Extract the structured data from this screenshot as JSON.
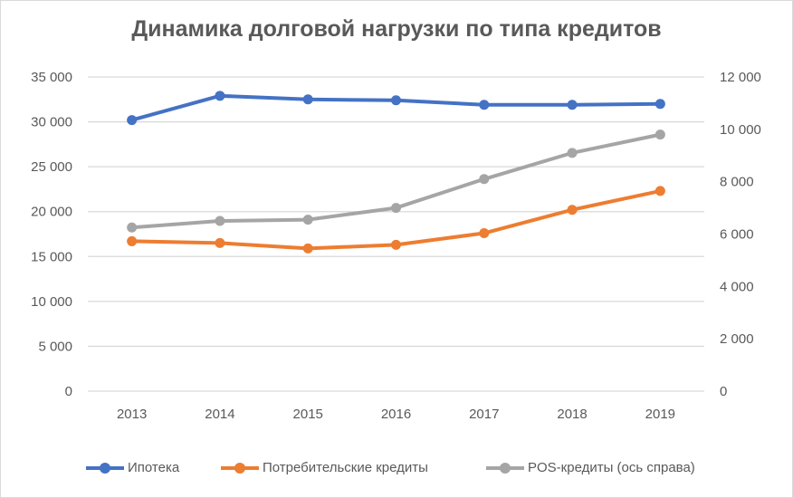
{
  "chart_data": {
    "type": "line",
    "title": "Динамика долговой нагрузки по типа кредитов",
    "categories": [
      "2013",
      "2014",
      "2015",
      "2016",
      "2017",
      "2018",
      "2019"
    ],
    "y_left": {
      "ylim": [
        0,
        35000
      ],
      "ticks": [
        0,
        5000,
        10000,
        15000,
        20000,
        25000,
        30000,
        35000
      ],
      "tick_labels": [
        "0",
        "5 000",
        "10 000",
        "15 000",
        "20 000",
        "25 000",
        "30 000",
        "35 000"
      ]
    },
    "y_right": {
      "ylim": [
        0,
        12000
      ],
      "ticks": [
        0,
        2000,
        4000,
        6000,
        8000,
        10000,
        12000
      ],
      "tick_labels": [
        "0",
        "2 000",
        "4 000",
        "6 000",
        "8 000",
        "10 000",
        "12 000"
      ]
    },
    "grid": true,
    "legend_position": "bottom",
    "series": [
      {
        "name": "Ипотека",
        "axis": "left",
        "color": "#4472c4",
        "values": [
          30200,
          32900,
          32500,
          32400,
          31900,
          31900,
          32000
        ]
      },
      {
        "name": "Потребительские кредиты",
        "axis": "left",
        "color": "#ed7d31",
        "values": [
          16700,
          16500,
          15900,
          16300,
          17600,
          20200,
          22300
        ]
      },
      {
        "name": "POS-кредиты (ось справа)",
        "axis": "right",
        "color": "#a5a5a5",
        "values": [
          6250,
          6500,
          6550,
          7000,
          8100,
          9100,
          9800
        ]
      }
    ]
  }
}
